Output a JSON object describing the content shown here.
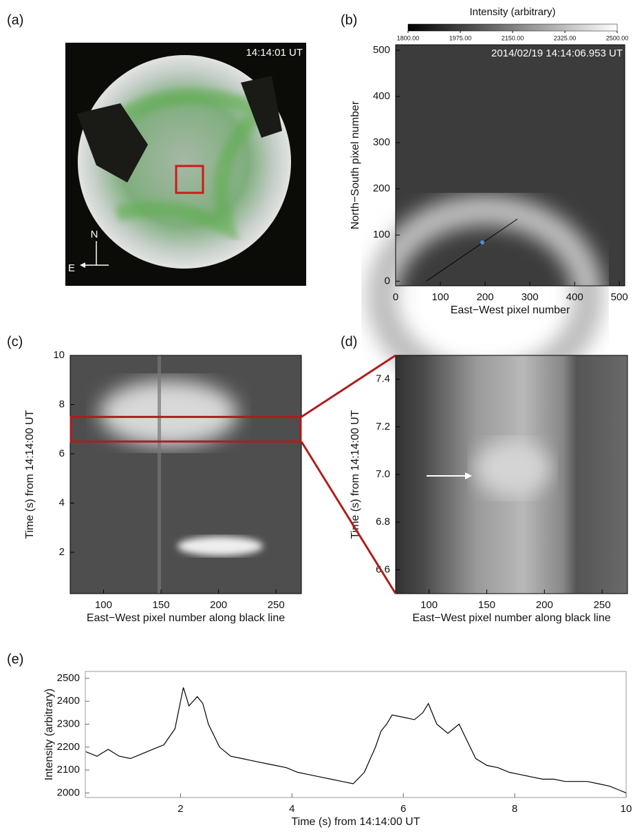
{
  "chart_data": [
    {
      "type": "image",
      "panel_label": "(a)",
      "timestamp": "14:14:01 UT",
      "north_label": "N",
      "east_label": "E"
    },
    {
      "type": "image",
      "panel_label": "(b)",
      "colorbar_title": "Intensity (arbitrary)",
      "colorbar_lim": [
        1800,
        2500
      ],
      "colorbar_ticks": [
        {
          "value": 1800,
          "label": "1800.00"
        },
        {
          "value": 1975,
          "label": "1975.00"
        },
        {
          "value": 2150,
          "label": "2150.00"
        },
        {
          "value": 2325,
          "label": "2325.00"
        },
        {
          "value": 2500,
          "label": "2500.00"
        }
      ],
      "timestamp": "2014/02/19 14:14:06.953 UT",
      "xlabel": "East−West pixel number",
      "ylabel": "North−South pixel number",
      "xlim": [
        0,
        512
      ],
      "ylim": [
        -10,
        512
      ],
      "xticks": [
        0,
        100,
        200,
        300,
        400,
        500
      ],
      "yticks": [
        0,
        100,
        200,
        300,
        400,
        500
      ]
    },
    {
      "type": "image",
      "panel_label": "(c)",
      "xlabel": "East−West pixel number along black line",
      "ylabel": "Time (s) from 14:14:00 UT",
      "xlim": [
        71,
        272
      ],
      "ylim": [
        0.32,
        10
      ],
      "xticks": [
        100,
        150,
        200,
        250
      ],
      "yticks": [
        2,
        4,
        6,
        8,
        10
      ]
    },
    {
      "type": "image",
      "panel_label": "(d)",
      "xlabel": "East−West pixel number along black line",
      "ylabel": "Time (s) from 14:14:00 UT",
      "xlim": [
        71,
        272
      ],
      "ylim": [
        6.5,
        7.5
      ],
      "xticks": [
        100,
        150,
        200,
        250
      ],
      "yticks": [
        6.6,
        6.8,
        {
          "value": 7,
          "label": "7.0"
        },
        7.2,
        7.4
      ]
    },
    {
      "type": "line",
      "panel_label": "(e)",
      "xlabel": "Time (s) from 14:14:00 UT",
      "ylabel": "Intensity (arbitrary)",
      "xlim": [
        0.29,
        10
      ],
      "ylim": [
        1980,
        2530
      ],
      "xticks": [
        2,
        4,
        6,
        8,
        10
      ],
      "yticks": [
        2000,
        2100,
        2200,
        2300,
        2400,
        2500
      ],
      "color": "#000000",
      "x": [
        0.3,
        0.5,
        0.7,
        0.9,
        1.1,
        1.3,
        1.5,
        1.7,
        1.9,
        2.0,
        2.05,
        2.15,
        2.3,
        2.4,
        2.5,
        2.7,
        2.9,
        3.1,
        3.3,
        3.5,
        3.7,
        3.9,
        4.1,
        4.3,
        4.5,
        4.7,
        4.9,
        5.1,
        5.3,
        5.5,
        5.6,
        5.7,
        5.8,
        6.0,
        6.2,
        6.35,
        6.45,
        6.6,
        6.8,
        7.0,
        7.1,
        7.3,
        7.5,
        7.7,
        7.9,
        8.1,
        8.3,
        8.5,
        8.7,
        8.9,
        9.1,
        9.3,
        9.5,
        9.7,
        9.9,
        10
      ],
      "values": [
        2180,
        2160,
        2190,
        2160,
        2150,
        2170,
        2190,
        2210,
        2280,
        2400,
        2460,
        2380,
        2420,
        2390,
        2300,
        2200,
        2160,
        2150,
        2140,
        2130,
        2120,
        2110,
        2090,
        2080,
        2070,
        2060,
        2050,
        2040,
        2090,
        2200,
        2270,
        2300,
        2340,
        2330,
        2320,
        2350,
        2390,
        2300,
        2260,
        2300,
        2250,
        2150,
        2120,
        2110,
        2090,
        2080,
        2070,
        2060,
        2060,
        2050,
        2050,
        2050,
        2040,
        2030,
        2010,
        2000
      ]
    }
  ]
}
